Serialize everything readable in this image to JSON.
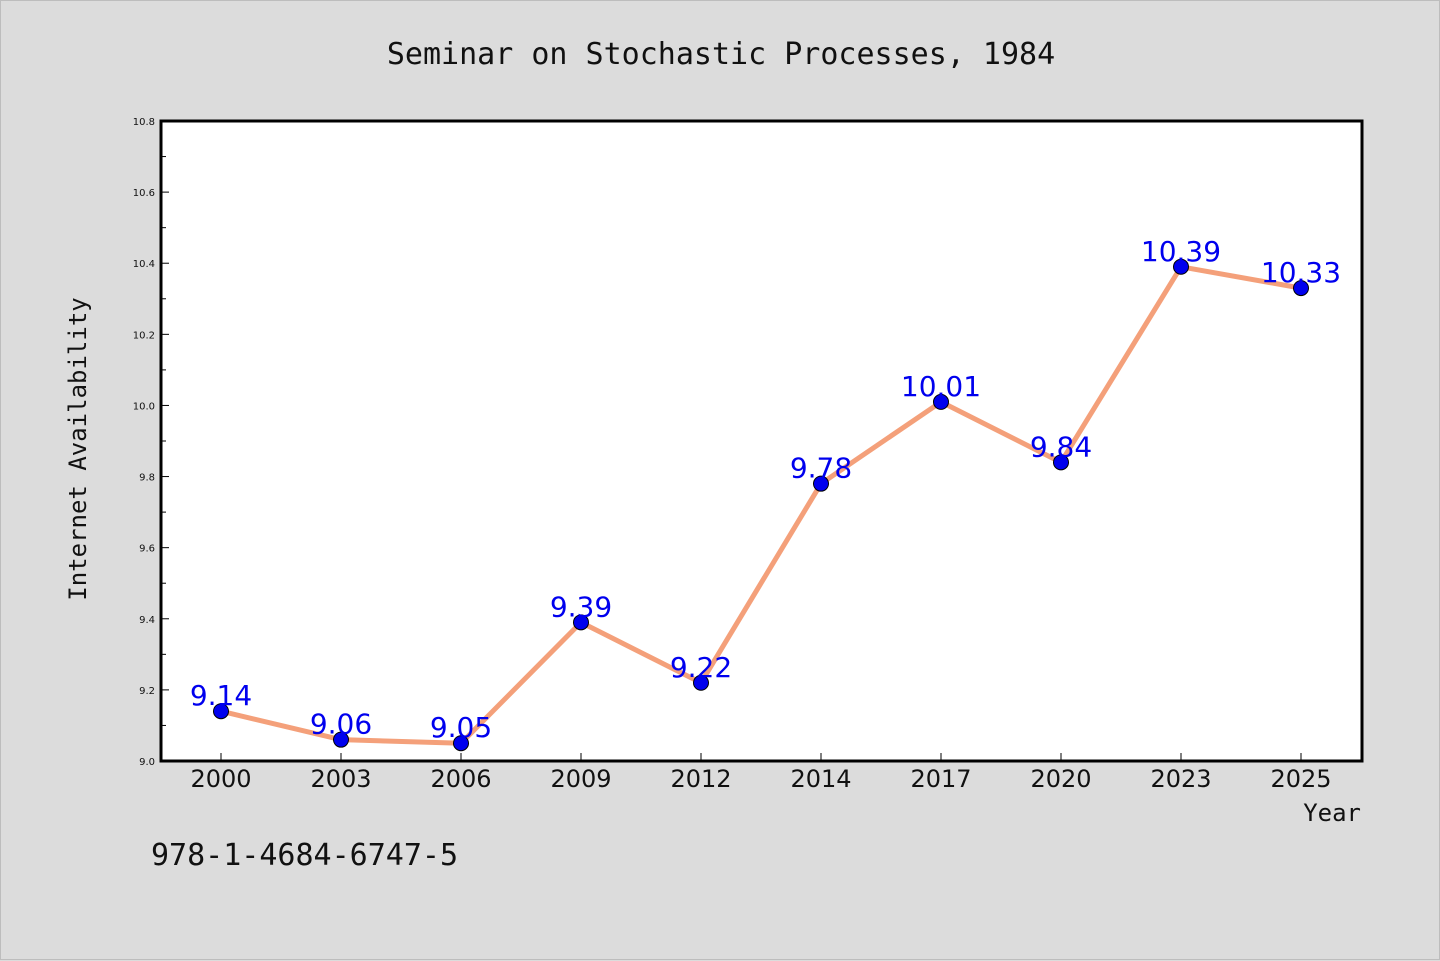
{
  "chart_data": {
    "type": "line",
    "title": "Seminar on Stochastic Processes, 1984",
    "xlabel": "Year",
    "ylabel": "Internet Availability",
    "categories": [
      "2000",
      "2003",
      "2006",
      "2009",
      "2012",
      "2014",
      "2017",
      "2020",
      "2023",
      "2025"
    ],
    "series": [
      {
        "values": [
          9.14,
          9.06,
          9.05,
          9.39,
          9.22,
          9.78,
          10.01,
          9.84,
          10.39,
          10.33
        ],
        "labels": [
          "9.14",
          "9.06",
          "9.05",
          "9.39",
          "9.22",
          "9.78",
          "10.01",
          "9.84",
          "10.39",
          "10.33"
        ],
        "line_color": "#f4a07a",
        "marker_color": "#0000ee"
      }
    ],
    "ylim": [
      9.0,
      10.8
    ],
    "yticks": [
      "9.0",
      "9.2",
      "9.4",
      "9.6",
      "9.8",
      "10.0",
      "10.2",
      "10.4",
      "10.6",
      "10.8"
    ],
    "grid": false,
    "data_label_color": "#0000ee"
  },
  "footer": {
    "isbn": "978-1-4684-6747-5"
  }
}
